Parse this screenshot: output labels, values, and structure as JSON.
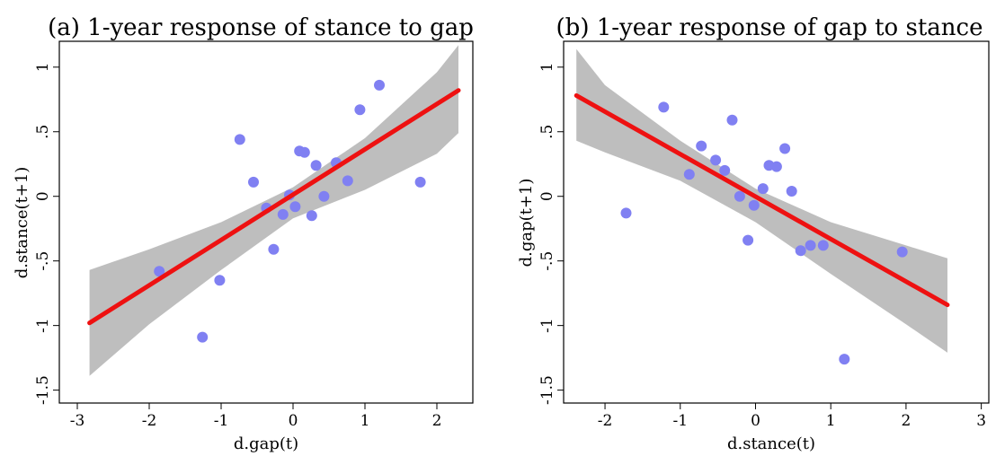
{
  "colors": {
    "points": "#8080f2",
    "fit_line": "#ee1111",
    "confidence_band": "#bebebe"
  },
  "chart_data": [
    {
      "type": "scatter",
      "title": "(a) 1-year response of stance to gap",
      "xlabel": "d.gap(t)",
      "ylabel": "d.stance(t+1)",
      "x_ticks": [
        -3,
        -2,
        -1,
        0,
        1,
        2
      ],
      "x_tick_labels": [
        "-3",
        "-2",
        "-1",
        "0",
        "1",
        "2"
      ],
      "y_ticks": [
        -1.5,
        -1,
        -0.5,
        0,
        0.5,
        1
      ],
      "y_tick_labels": [
        "-1.5",
        "-1",
        "-.5",
        "0",
        ".5",
        "1"
      ],
      "xlim": [
        -3.25,
        2.5
      ],
      "ylim": [
        -1.6,
        1.2
      ],
      "grid": false,
      "points": [
        {
          "x": -1.86,
          "y": -0.58
        },
        {
          "x": -1.26,
          "y": -1.09
        },
        {
          "x": -1.02,
          "y": -0.65
        },
        {
          "x": -0.74,
          "y": 0.44
        },
        {
          "x": -0.55,
          "y": 0.11
        },
        {
          "x": -0.37,
          "y": -0.09
        },
        {
          "x": -0.27,
          "y": -0.41
        },
        {
          "x": -0.14,
          "y": -0.14
        },
        {
          "x": -0.05,
          "y": 0.01
        },
        {
          "x": 0.03,
          "y": -0.08
        },
        {
          "x": 0.09,
          "y": 0.35
        },
        {
          "x": 0.16,
          "y": 0.34
        },
        {
          "x": 0.26,
          "y": -0.15
        },
        {
          "x": 0.32,
          "y": 0.24
        },
        {
          "x": 0.43,
          "y": 0.0
        },
        {
          "x": 0.6,
          "y": 0.26
        },
        {
          "x": 0.76,
          "y": 0.12
        },
        {
          "x": 0.93,
          "y": 0.67
        },
        {
          "x": 1.2,
          "y": 0.86
        },
        {
          "x": 1.77,
          "y": 0.11
        }
      ],
      "fit_line": [
        {
          "x": -2.83,
          "y": -0.98
        },
        {
          "x": 2.3,
          "y": 0.82
        }
      ],
      "confidence_band": {
        "x": [
          -2.83,
          -2.0,
          -1.0,
          0.0,
          1.0,
          2.0,
          2.3
        ],
        "upper": [
          -0.57,
          -0.41,
          -0.2,
          0.07,
          0.45,
          0.96,
          1.17
        ],
        "lower": [
          -1.39,
          -0.99,
          -0.57,
          -0.17,
          0.05,
          0.33,
          0.49
        ]
      }
    },
    {
      "type": "scatter",
      "title": "(b) 1-year response of gap to stance",
      "xlabel": "d.stance(t)",
      "ylabel": "d.gap(t+1)",
      "x_ticks": [
        -2,
        -1,
        0,
        1,
        2,
        3
      ],
      "x_tick_labels": [
        "-2",
        "-1",
        "0",
        "1",
        "2",
        "3"
      ],
      "y_ticks": [
        -1.5,
        -1,
        -0.5,
        0,
        0.5,
        1
      ],
      "y_tick_labels": [
        "-1.5",
        "-1",
        "-.5",
        "0",
        ".5",
        "1"
      ],
      "xlim": [
        -2.55,
        3.1
      ],
      "ylim": [
        -1.6,
        1.2
      ],
      "grid": false,
      "points": [
        {
          "x": -1.72,
          "y": -0.13
        },
        {
          "x": -1.22,
          "y": 0.69
        },
        {
          "x": -0.88,
          "y": 0.17
        },
        {
          "x": -0.72,
          "y": 0.39
        },
        {
          "x": -0.53,
          "y": 0.28
        },
        {
          "x": -0.41,
          "y": 0.2
        },
        {
          "x": -0.31,
          "y": 0.59
        },
        {
          "x": -0.21,
          "y": 0.0
        },
        {
          "x": -0.1,
          "y": -0.34
        },
        {
          "x": -0.02,
          "y": -0.07
        },
        {
          "x": 0.1,
          "y": 0.06
        },
        {
          "x": 0.18,
          "y": 0.24
        },
        {
          "x": 0.28,
          "y": 0.23
        },
        {
          "x": 0.39,
          "y": 0.37
        },
        {
          "x": 0.48,
          "y": 0.04
        },
        {
          "x": 0.6,
          "y": -0.42
        },
        {
          "x": 0.73,
          "y": -0.38
        },
        {
          "x": 0.9,
          "y": -0.38
        },
        {
          "x": 1.18,
          "y": -1.26
        },
        {
          "x": 1.95,
          "y": -0.43
        }
      ],
      "fit_line": [
        {
          "x": -2.38,
          "y": 0.78
        },
        {
          "x": 2.55,
          "y": -0.84
        }
      ],
      "confidence_band": {
        "x": [
          -2.38,
          -2.0,
          -1.0,
          0.0,
          1.0,
          2.0,
          2.55
        ],
        "upper": [
          1.14,
          0.86,
          0.43,
          0.06,
          -0.2,
          -0.38,
          -0.48
        ],
        "lower": [
          0.43,
          0.34,
          0.12,
          -0.2,
          -0.6,
          -0.99,
          -1.21
        ]
      }
    }
  ]
}
